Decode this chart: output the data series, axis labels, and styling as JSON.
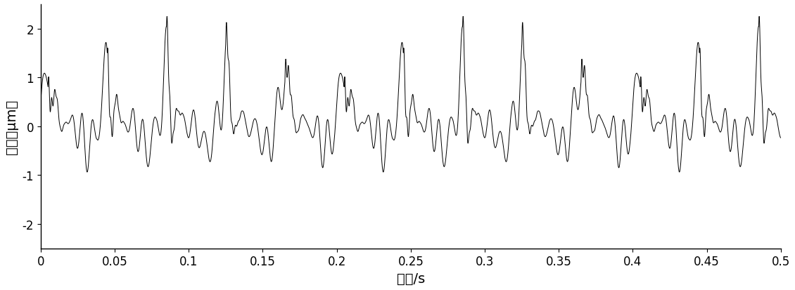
{
  "title": "",
  "xlabel": "时间/s",
  "ylabel": "幅値［μm］",
  "xlim": [
    0,
    0.5
  ],
  "ylim": [
    -2.5,
    2.5
  ],
  "xticks": [
    0,
    0.05,
    0.1,
    0.15,
    0.2,
    0.25,
    0.3,
    0.35,
    0.4,
    0.45,
    0.5
  ],
  "yticks": [
    -2,
    -1,
    0,
    1,
    2
  ],
  "line_color": "#000000",
  "line_width": 0.7,
  "background_color": "#ffffff",
  "sample_rate": 10000,
  "duration": 0.5,
  "xlabel_fontsize": 14,
  "ylabel_fontsize": 14,
  "tick_fontsize": 12
}
